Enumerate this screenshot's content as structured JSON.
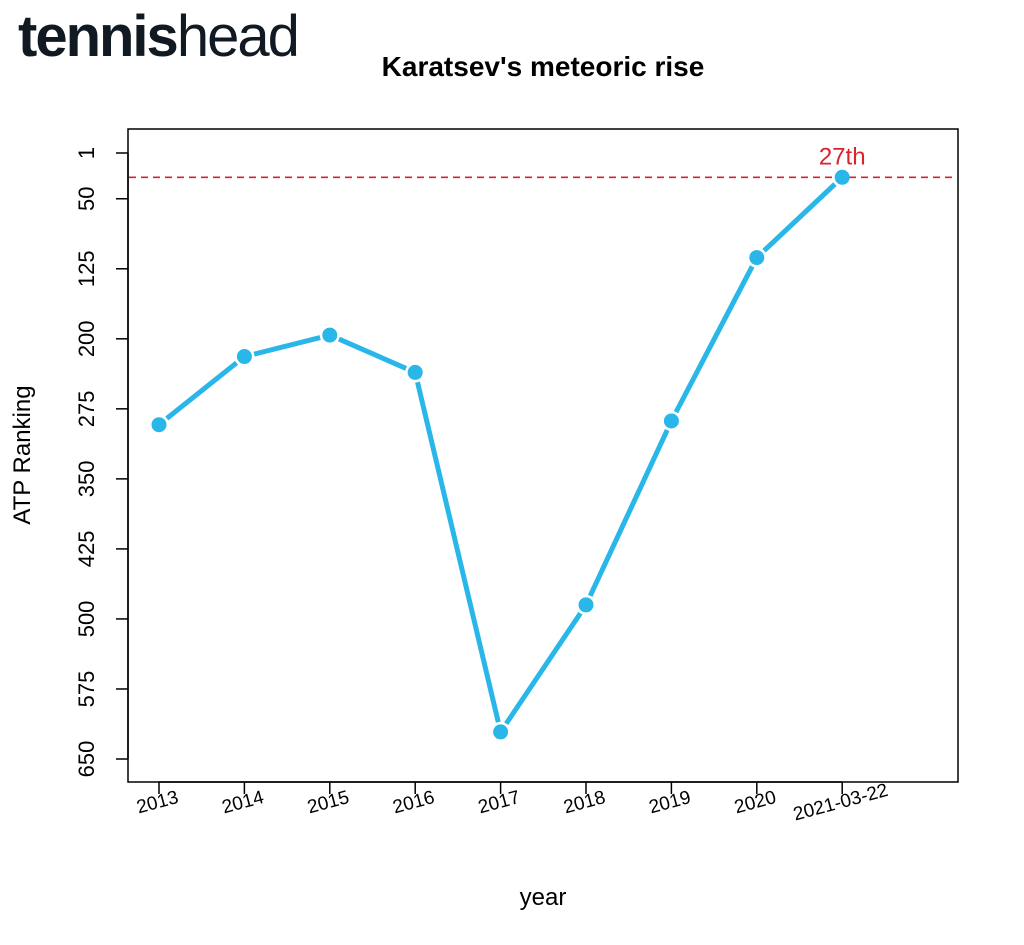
{
  "logo": {
    "part1": "tennis",
    "part2": "head"
  },
  "chart_data": {
    "type": "line",
    "title": "Karatsev's meteoric rise",
    "xlabel": "year",
    "ylabel": "ATP Ranking",
    "categories": [
      "2013",
      "2014",
      "2015",
      "2016",
      "2017",
      "2018",
      "2019",
      "2020",
      "2021-03-22"
    ],
    "series": [
      {
        "values": [
          292,
          219,
          196,
          236,
          621,
          485,
          288,
          113,
          27
        ]
      }
    ],
    "y_reversed": true,
    "yticks": [
      1,
      50,
      125,
      200,
      275,
      350,
      425,
      500,
      575,
      650
    ],
    "ylim": [
      1,
      650
    ],
    "reference_line": {
      "value": 27,
      "label": "27th",
      "style": "dashed"
    },
    "grid": false,
    "colors": {
      "line": "#29b6e8",
      "reference": "#d9232d",
      "axis": "#000000"
    }
  }
}
